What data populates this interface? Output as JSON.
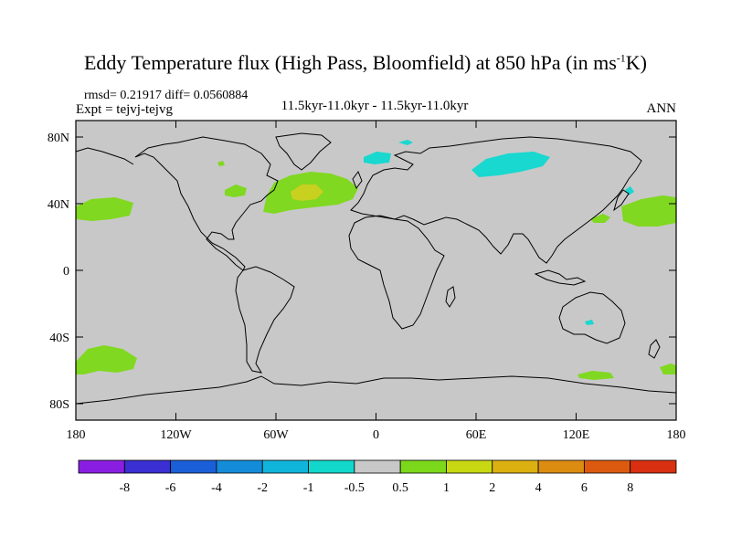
{
  "title_main": "Eddy Temperature flux (High Pass, Bloomfield) at 850 hPa (in ms",
  "title_sup": "-1",
  "title_end": "K)",
  "stats": "rmsd= 0.21917 diff= 0.0560884",
  "expt": "Expt = tejvj-tejvg",
  "period": "11.5kyr-11.0kyr - 11.5kyr-11.0kyr",
  "season": "ANN",
  "lat_ticks": [
    "80N",
    "40N",
    "0",
    "40S",
    "80S"
  ],
  "lon_ticks": [
    "180",
    "120W",
    "60W",
    "0",
    "60E",
    "120E",
    "180"
  ],
  "colorbar": {
    "labels": [
      "-8",
      "-6",
      "-4",
      "-2",
      "-1",
      "-0.5",
      "0.5",
      "1",
      "2",
      "4",
      "6",
      "8"
    ],
    "colors": [
      "#8a1ee0",
      "#3a2fd0",
      "#1a5fd8",
      "#148cd8",
      "#10b5dc",
      "#12d8cc",
      "#c8c8c8",
      "#7cd81a",
      "#c8d812",
      "#dcb010",
      "#dc8c10",
      "#dc5a10",
      "#d83010"
    ]
  },
  "colors": {
    "land_sea_bg": "#c8c8c8",
    "positive": "#80d820",
    "strong_positive": "#c8d020",
    "negative": "#18d8d0"
  }
}
